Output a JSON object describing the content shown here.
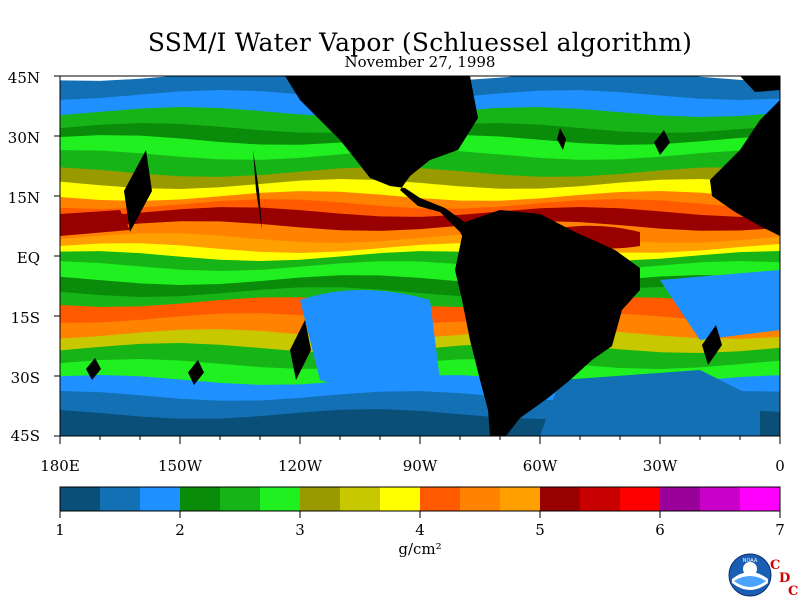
{
  "title": "SSM/I Water Vapor (Schluessel algorithm)",
  "subtitle": "November 27, 1998",
  "lat_labels": [
    "45N",
    "30N",
    "15N",
    "EQ",
    "15S",
    "30S",
    "45S"
  ],
  "lon_labels": [
    "180E",
    "150W",
    "120W",
    "90W",
    "60W",
    "30W",
    "0"
  ],
  "colorbar": {
    "tick_labels": [
      "1",
      "2",
      "3",
      "4",
      "5",
      "6",
      "7"
    ],
    "unit": "g/cm²",
    "colors": [
      "#0a4f78",
      "#1470b4",
      "#1e90ff",
      "#0a8c0a",
      "#16b416",
      "#20f020",
      "#999900",
      "#c8c800",
      "#ffff00",
      "#ff5a00",
      "#ff8200",
      "#ffa000",
      "#990000",
      "#c80000",
      "#ff0000",
      "#990099",
      "#c800c8",
      "#ff00ff"
    ]
  },
  "logo": {
    "text": "NOAA",
    "cdc": "CDC"
  },
  "land_color": "#000000"
}
